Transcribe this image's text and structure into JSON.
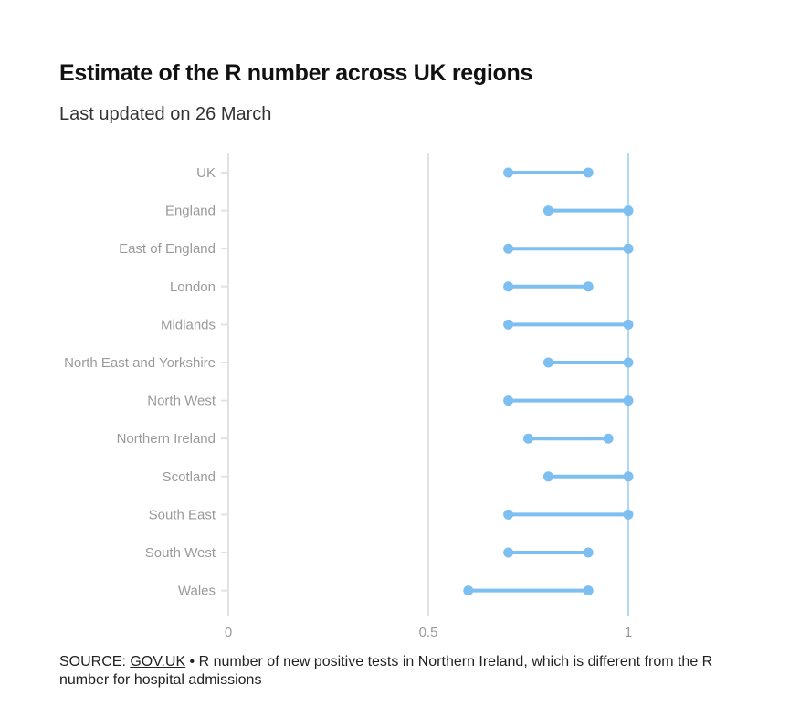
{
  "title": "Estimate of the R number across UK regions",
  "subtitle": "Last updated on 26 March",
  "footer": {
    "source_prefix": "SOURCE: ",
    "source_link": "GOV.UK",
    "note": " • R number of new positive tests in Northern Ireland, which is different from the R number for hospital admissions"
  },
  "colors": {
    "accent": "#7dbff0",
    "reference_line": "#7dbff0",
    "grid": "#e2e2e2",
    "label": "#9a9a9a"
  },
  "chart_data": {
    "type": "range_dot",
    "title": "Estimate of the R number across UK regions",
    "subtitle": "Last updated on 26 March",
    "xlim": [
      0,
      1.2
    ],
    "xticks": [
      0,
      0.5,
      1
    ],
    "xtick_labels": [
      "0",
      "0.5",
      "1"
    ],
    "reference_line": 1,
    "categories": [
      "UK",
      "England",
      "East of England",
      "London",
      "Midlands",
      "North East and Yorkshire",
      "North West",
      "Northern Ireland",
      "Scotland",
      "South East",
      "South West",
      "Wales"
    ],
    "low": [
      0.7,
      0.8,
      0.7,
      0.7,
      0.7,
      0.8,
      0.7,
      0.75,
      0.8,
      0.7,
      0.7,
      0.6
    ],
    "high": [
      0.9,
      1.0,
      1.0,
      0.9,
      1.0,
      1.0,
      1.0,
      0.95,
      1.0,
      1.0,
      0.9,
      0.9
    ]
  }
}
